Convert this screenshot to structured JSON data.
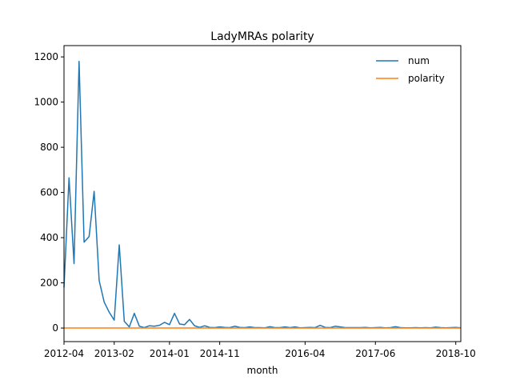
{
  "chart_data": {
    "type": "line",
    "title": "LadyMRAs polarity",
    "xlabel": "month",
    "ylabel": "",
    "ylim": [
      -60,
      1250
    ],
    "yticks": [
      0,
      200,
      400,
      600,
      800,
      1000,
      1200
    ],
    "xticks": [
      "2012-04",
      "2013-02",
      "2014-01",
      "2014-11",
      "2016-04",
      "2017-06",
      "2018-10"
    ],
    "legend_position": "upper right",
    "series": [
      {
        "name": "num",
        "color": "#1f77b4",
        "x_start": "2012-04",
        "values": [
          180,
          665,
          285,
          1180,
          380,
          405,
          605,
          210,
          115,
          70,
          35,
          368,
          30,
          5,
          65,
          8,
          2,
          10,
          8,
          12,
          25,
          15,
          65,
          18,
          15,
          38,
          10,
          3,
          10,
          3,
          2,
          5,
          3,
          2,
          8,
          3,
          2,
          5,
          2,
          2,
          1,
          6,
          2,
          2,
          5,
          2,
          5,
          1,
          2,
          3,
          2,
          12,
          3,
          2,
          8,
          5,
          2,
          2,
          2,
          2,
          3,
          1,
          2,
          3,
          1,
          2,
          6,
          2,
          1,
          1,
          2,
          1,
          2,
          1,
          4,
          2,
          1,
          2,
          3,
          1
        ]
      },
      {
        "name": "polarity",
        "color": "#ff7f0e",
        "x_start": "2012-04",
        "constant_value": 0.1
      }
    ]
  }
}
